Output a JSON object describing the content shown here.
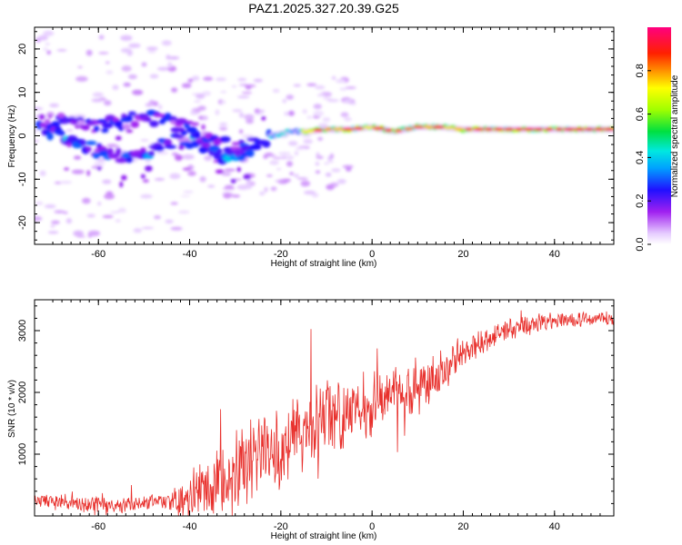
{
  "chart_data": [
    {
      "type": "heatmap",
      "title": "PAZ1.2025.327.20.39.G25",
      "xlabel": "Height of straight line (km)",
      "ylabel": "Frequency (Hz)",
      "xlim": [
        -74,
        53
      ],
      "ylim": [
        -25,
        25
      ],
      "xticks": [
        -60,
        -40,
        -20,
        0,
        20,
        40
      ],
      "yticks": [
        -20,
        -10,
        0,
        10,
        20
      ],
      "ridge": [
        {
          "x": -70,
          "f": 1
        },
        {
          "x": -66,
          "f": -1
        },
        {
          "x": -62,
          "f": -3
        },
        {
          "x": -58,
          "f": -4
        },
        {
          "x": -54,
          "f": -5
        },
        {
          "x": -50,
          "f": -4
        },
        {
          "x": -46,
          "f": -2
        },
        {
          "x": -42,
          "f": 0
        },
        {
          "x": -38,
          "f": -2
        },
        {
          "x": -34,
          "f": -4
        },
        {
          "x": -30,
          "f": -5
        },
        {
          "x": -26,
          "f": -2
        },
        {
          "x": -22,
          "f": 0
        },
        {
          "x": -18,
          "f": 1
        },
        {
          "x": -14,
          "f": 1
        },
        {
          "x": -10,
          "f": 1.5
        },
        {
          "x": -5,
          "f": 1.5
        },
        {
          "x": 0,
          "f": 2
        },
        {
          "x": 5,
          "f": 1
        },
        {
          "x": 10,
          "f": 2
        },
        {
          "x": 15,
          "f": 2
        },
        {
          "x": 20,
          "f": 1.5
        },
        {
          "x": 30,
          "f": 1.5
        },
        {
          "x": 40,
          "f": 1.5
        },
        {
          "x": 53,
          "f": 1.5
        }
      ],
      "upper_branch": [
        {
          "x": -68,
          "f": 3
        },
        {
          "x": -60,
          "f": 2
        },
        {
          "x": -52,
          "f": 4
        },
        {
          "x": -46,
          "f": 4
        },
        {
          "x": -40,
          "f": 1
        },
        {
          "x": -34,
          "f": -2
        },
        {
          "x": -28,
          "f": -3
        }
      ],
      "colorbar": {
        "label": "Normalized spectral amplitude",
        "ticks": [
          "0.0",
          "0.2",
          "0.4",
          "0.6",
          "0.8"
        ],
        "range": [
          0,
          1
        ]
      }
    },
    {
      "type": "line",
      "xlabel": "Height of straight line (km)",
      "ylabel": "SNR (10 * v/v)",
      "xlim": [
        -74,
        53
      ],
      "ylim": [
        0,
        3500
      ],
      "xticks": [
        -60,
        -40,
        -20,
        0,
        20,
        40
      ],
      "yticks": [
        1000,
        2000,
        3000
      ],
      "series": [
        {
          "name": "SNR",
          "color": "#e8302c",
          "baseline": [
            {
              "x": -74,
              "y": 250
            },
            {
              "x": -65,
              "y": 200
            },
            {
              "x": -55,
              "y": 180
            },
            {
              "x": -45,
              "y": 220
            },
            {
              "x": -40,
              "y": 300
            },
            {
              "x": -36,
              "y": 500
            },
            {
              "x": -32,
              "y": 700
            },
            {
              "x": -28,
              "y": 850
            },
            {
              "x": -24,
              "y": 1000
            },
            {
              "x": -20,
              "y": 1100
            },
            {
              "x": -16,
              "y": 1300
            },
            {
              "x": -12,
              "y": 1500
            },
            {
              "x": -8,
              "y": 1650
            },
            {
              "x": -4,
              "y": 1750
            },
            {
              "x": 0,
              "y": 1850
            },
            {
              "x": 4,
              "y": 1950
            },
            {
              "x": 8,
              "y": 2050
            },
            {
              "x": 12,
              "y": 2150
            },
            {
              "x": 16,
              "y": 2350
            },
            {
              "x": 20,
              "y": 2600
            },
            {
              "x": 24,
              "y": 2800
            },
            {
              "x": 28,
              "y": 2950
            },
            {
              "x": 32,
              "y": 3050
            },
            {
              "x": 40,
              "y": 3150
            },
            {
              "x": 53,
              "y": 3200
            }
          ],
          "noise_amplitude": [
            {
              "x": -74,
              "a": 150
            },
            {
              "x": -45,
              "a": 150
            },
            {
              "x": -38,
              "a": 500
            },
            {
              "x": -30,
              "a": 800
            },
            {
              "x": -20,
              "a": 800
            },
            {
              "x": -10,
              "a": 700
            },
            {
              "x": 0,
              "a": 650
            },
            {
              "x": 10,
              "a": 500
            },
            {
              "x": 20,
              "a": 300
            },
            {
              "x": 30,
              "a": 200
            },
            {
              "x": 53,
              "a": 120
            }
          ]
        }
      ]
    }
  ]
}
